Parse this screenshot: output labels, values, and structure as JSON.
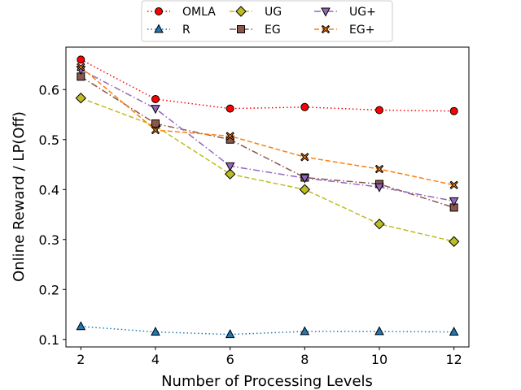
{
  "chart_data": {
    "type": "line",
    "title": "",
    "xlabel": "Number of Processing Levels",
    "ylabel": "Online Reward / LP(Off)",
    "x": [
      2,
      4,
      6,
      8,
      10,
      12
    ],
    "xticks": [
      "2",
      "4",
      "6",
      "8",
      "10",
      "12"
    ],
    "yticks": [
      "0.1",
      "0.2",
      "0.3",
      "0.4",
      "0.5",
      "0.6"
    ],
    "xlim": [
      1.6,
      12.4
    ],
    "ylim": [
      0.085,
      0.685
    ],
    "grid": false,
    "legend_position": "top-center",
    "series": [
      {
        "name": "OMLA",
        "values": [
          0.66,
          0.581,
          0.562,
          0.565,
          0.559,
          0.557
        ],
        "color": "#ff0000",
        "marker": "circle",
        "dash": "dot"
      },
      {
        "name": "R",
        "values": [
          0.126,
          0.115,
          0.11,
          0.116,
          0.116,
          0.115
        ],
        "color": "#1f77b4",
        "marker": "triangle-up",
        "dash": "dot"
      },
      {
        "name": "UG",
        "values": [
          0.583,
          0.527,
          0.431,
          0.4,
          0.331,
          0.296
        ],
        "color": "#bcbd22",
        "marker": "diamond",
        "dash": "dash"
      },
      {
        "name": "EG",
        "values": [
          0.626,
          0.532,
          0.5,
          0.424,
          0.411,
          0.364
        ],
        "color": "#8c564b",
        "marker": "square",
        "dash": "dashdot"
      },
      {
        "name": "UG+",
        "values": [
          0.64,
          0.562,
          0.447,
          0.423,
          0.405,
          0.377
        ],
        "color": "#9467bd",
        "marker": "triangle-down",
        "dash": "dashdot"
      },
      {
        "name": "EG+",
        "values": [
          0.645,
          0.519,
          0.507,
          0.465,
          0.441,
          0.409
        ],
        "color": "#ff7f0e",
        "marker": "x",
        "dash": "dash"
      }
    ]
  }
}
